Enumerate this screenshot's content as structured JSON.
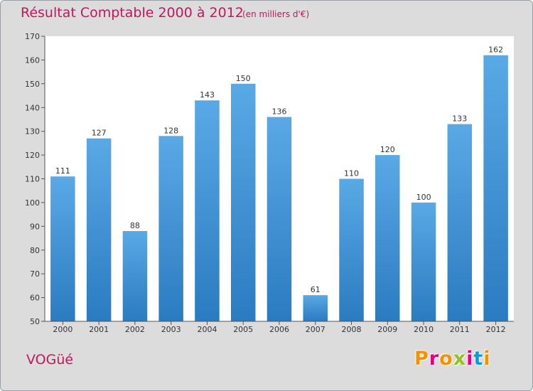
{
  "header": {
    "title": "Résultat Comptable 2000 à 2012",
    "subtitle": "(en milliers d'€)"
  },
  "footer": {
    "commune": "VOGüé",
    "brand": "Proxiti"
  },
  "colors": {
    "bar_top": "#5aa9e6",
    "bar_bottom": "#2a7bc0",
    "accent": "#c2185b",
    "plot_bg": "#ffffff",
    "frame_bg": "#dcdcdc"
  },
  "chart_data": {
    "type": "bar",
    "title": "Résultat Comptable 2000 à 2012",
    "subtitle": "(en milliers d'€)",
    "xlabel": "",
    "ylabel": "",
    "categories": [
      "2000",
      "2001",
      "2002",
      "2003",
      "2004",
      "2005",
      "2006",
      "2007",
      "2008",
      "2009",
      "2010",
      "2011",
      "2012"
    ],
    "values": [
      111,
      127,
      88,
      128,
      143,
      150,
      136,
      61,
      110,
      120,
      100,
      133,
      162
    ],
    "ylim": [
      50,
      170
    ],
    "yticks": [
      50,
      60,
      70,
      80,
      90,
      100,
      110,
      120,
      130,
      140,
      150,
      160,
      170
    ],
    "grid": false,
    "data_labels": true
  }
}
